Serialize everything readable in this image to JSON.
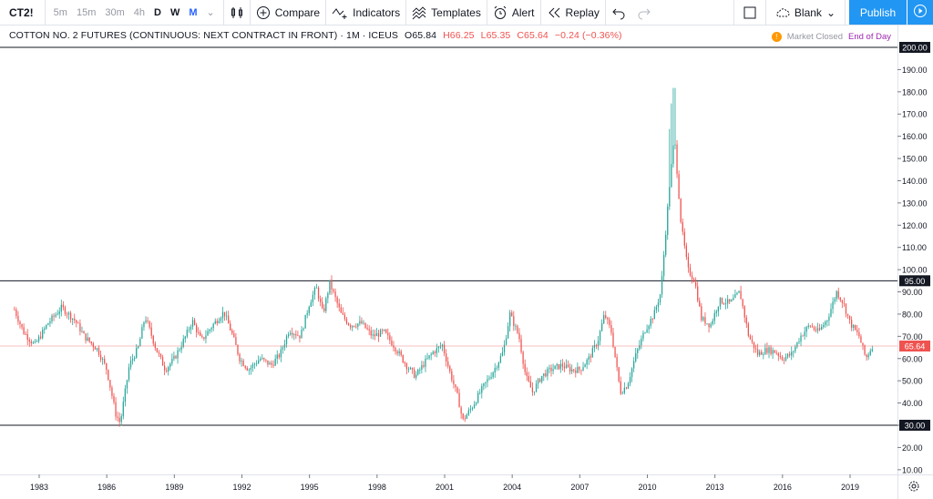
{
  "toolbar": {
    "symbol": "CT2!",
    "intervals": [
      "5m",
      "15m",
      "30m",
      "4h",
      "D",
      "W",
      "M"
    ],
    "compare_label": "Compare",
    "indicators_label": "Indicators",
    "templates_label": "Templates",
    "alert_label": "Alert",
    "replay_label": "Replay",
    "layout_label": "Blank",
    "publish_label": "Publish"
  },
  "legend": {
    "title": "COTTON NO. 2 FUTURES (CONTINUOUS: NEXT CONTRACT IN FRONT) · 1M · ICEUS",
    "open": "O65.84",
    "high": "H66.25",
    "low": "L65.35",
    "close": "C65.64",
    "change": "−0.24 (−0.36%)"
  },
  "status": {
    "market": "Market Closed",
    "eod": "End of Day"
  },
  "colors": {
    "up": "#26a69a",
    "down": "#ef5350",
    "accent": "#2196f3",
    "price_line": "#ef5350"
  },
  "chart_data": {
    "type": "candlestick",
    "title": "COTTON NO. 2 FUTURES (CONTINUOUS: NEXT CONTRACT IN FRONT)",
    "interval": "1M",
    "exchange": "ICEUS",
    "x_tick_labels": [
      "1983",
      "1986",
      "1989",
      "1992",
      "1995",
      "1998",
      "2001",
      "2004",
      "2007",
      "2010",
      "2013",
      "2016",
      "2019"
    ],
    "y_tick_labels": [
      "10.00",
      "20.00",
      "30.00",
      "40.00",
      "50.00",
      "60.00",
      "70.00",
      "80.00",
      "90.00",
      "100.00",
      "110.00",
      "120.00",
      "130.00",
      "140.00",
      "150.00",
      "160.00",
      "170.00",
      "180.00",
      "190.00"
    ],
    "ylim": [
      5,
      203
    ],
    "xlim": [
      1981.7,
      2021.4
    ],
    "horizontal_lines": [
      200.0,
      95.0,
      30.0
    ],
    "current_price": 65.64,
    "price_path": [
      [
        1981.9,
        82
      ],
      [
        1982.3,
        72
      ],
      [
        1982.8,
        66
      ],
      [
        1983.4,
        76
      ],
      [
        1984.0,
        83
      ],
      [
        1984.6,
        77
      ],
      [
        1985.0,
        70
      ],
      [
        1985.6,
        64
      ],
      [
        1986.0,
        55
      ],
      [
        1986.4,
        35
      ],
      [
        1986.6,
        31
      ],
      [
        1987.0,
        57
      ],
      [
        1987.4,
        65
      ],
      [
        1987.7,
        79
      ],
      [
        1988.2,
        64
      ],
      [
        1988.6,
        55
      ],
      [
        1989.0,
        60
      ],
      [
        1989.5,
        70
      ],
      [
        1989.8,
        77
      ],
      [
        1990.2,
        68
      ],
      [
        1990.7,
        75
      ],
      [
        1991.2,
        81
      ],
      [
        1991.6,
        70
      ],
      [
        1991.9,
        60
      ],
      [
        1992.3,
        55
      ],
      [
        1992.8,
        60
      ],
      [
        1993.3,
        57
      ],
      [
        1993.7,
        62
      ],
      [
        1994.1,
        73
      ],
      [
        1994.6,
        70
      ],
      [
        1995.0,
        85
      ],
      [
        1995.3,
        92
      ],
      [
        1995.6,
        80
      ],
      [
        1995.9,
        94
      ],
      [
        1996.4,
        80
      ],
      [
        1996.8,
        75
      ],
      [
        1997.3,
        76
      ],
      [
        1997.8,
        70
      ],
      [
        1998.3,
        72
      ],
      [
        1998.8,
        65
      ],
      [
        1999.3,
        57
      ],
      [
        1999.7,
        52
      ],
      [
        2000.1,
        58
      ],
      [
        2000.5,
        63
      ],
      [
        2000.9,
        66
      ],
      [
        2001.2,
        55
      ],
      [
        2001.6,
        42
      ],
      [
        2001.8,
        32
      ],
      [
        2002.2,
        38
      ],
      [
        2002.7,
        47
      ],
      [
        2003.2,
        55
      ],
      [
        2003.6,
        63
      ],
      [
        2003.9,
        80
      ],
      [
        2004.3,
        70
      ],
      [
        2004.6,
        52
      ],
      [
        2004.9,
        45
      ],
      [
        2005.3,
        52
      ],
      [
        2005.7,
        55
      ],
      [
        2006.2,
        57
      ],
      [
        2006.6,
        55
      ],
      [
        2007.0,
        55
      ],
      [
        2007.4,
        60
      ],
      [
        2007.8,
        68
      ],
      [
        2008.1,
        80
      ],
      [
        2008.4,
        72
      ],
      [
        2008.8,
        45
      ],
      [
        2009.1,
        48
      ],
      [
        2009.5,
        62
      ],
      [
        2009.9,
        73
      ],
      [
        2010.3,
        80
      ],
      [
        2010.6,
        90
      ],
      [
        2010.8,
        115
      ],
      [
        2011.0,
        140
      ],
      [
        2011.2,
        160
      ],
      [
        2011.5,
        120
      ],
      [
        2011.8,
        100
      ],
      [
        2012.1,
        95
      ],
      [
        2012.4,
        78
      ],
      [
        2012.8,
        75
      ],
      [
        2013.2,
        86
      ],
      [
        2013.7,
        85
      ],
      [
        2014.1,
        90
      ],
      [
        2014.5,
        70
      ],
      [
        2014.9,
        62
      ],
      [
        2015.3,
        64
      ],
      [
        2015.7,
        63
      ],
      [
        2016.0,
        60
      ],
      [
        2016.4,
        62
      ],
      [
        2016.8,
        70
      ],
      [
        2017.2,
        75
      ],
      [
        2017.6,
        72
      ],
      [
        2018.0,
        78
      ],
      [
        2018.4,
        90
      ],
      [
        2018.7,
        85
      ],
      [
        2019.0,
        76
      ],
      [
        2019.4,
        70
      ],
      [
        2019.7,
        60
      ],
      [
        2020.0,
        66
      ]
    ],
    "grid": false
  }
}
